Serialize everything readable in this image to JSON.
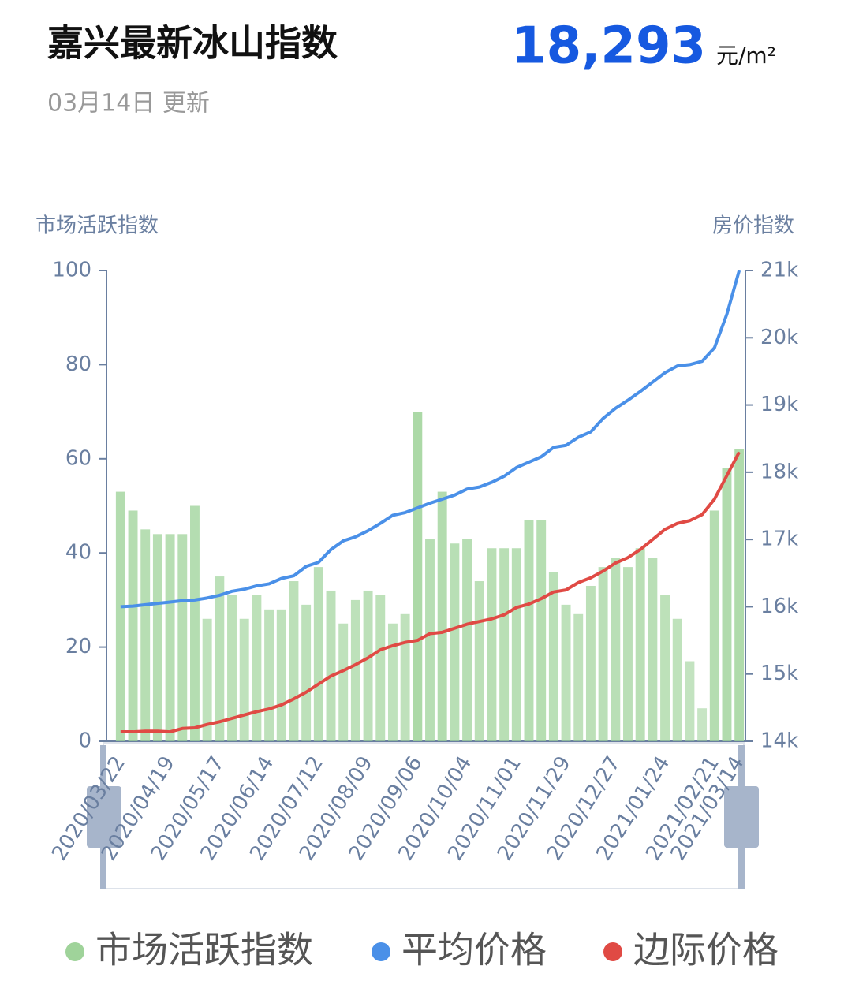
{
  "header": {
    "title": "嘉兴最新冰山指数",
    "price": "18,293",
    "unit": "元/m²",
    "updated": "03月14日  更新"
  },
  "chart_data": {
    "type": "bar",
    "y_axis_title": "市场活跃指数",
    "y2_axis_title": "房价指数",
    "categories": [
      "2020/03/22",
      null,
      null,
      null,
      "2020/04/19",
      null,
      null,
      null,
      "2020/05/17",
      null,
      null,
      null,
      "2020/06/14",
      null,
      null,
      null,
      "2020/07/12",
      null,
      null,
      null,
      "2020/08/09",
      null,
      null,
      null,
      "2020/09/06",
      null,
      null,
      null,
      "2020/10/04",
      null,
      null,
      null,
      "2020/11/01",
      null,
      null,
      null,
      "2020/11/29",
      null,
      null,
      null,
      "2020/12/27",
      null,
      null,
      null,
      "2021/01/24",
      null,
      null,
      null,
      "2021/02/21",
      null,
      "2021/03/14"
    ],
    "series": [
      {
        "name": "市场活跃指数",
        "type": "bar",
        "axis": "y",
        "color": "#9fd39a",
        "values": [
          53,
          49,
          45,
          44,
          44,
          44,
          50,
          26,
          35,
          31,
          26,
          31,
          28,
          28,
          34,
          29,
          37,
          32,
          25,
          30,
          32,
          31,
          25,
          27,
          70,
          43,
          53,
          42,
          43,
          34,
          41,
          41,
          41,
          47,
          47,
          36,
          29,
          27,
          33,
          37,
          39,
          37,
          41,
          39,
          31,
          26,
          17,
          7,
          49,
          58,
          62
        ]
      },
      {
        "name": "平均价格",
        "type": "line",
        "axis": "y2",
        "color": "#4a90e8",
        "values": [
          16000,
          16010,
          16030,
          16050,
          16070,
          16090,
          16100,
          16130,
          16170,
          16230,
          16260,
          16310,
          16340,
          16420,
          16460,
          16600,
          16660,
          16850,
          16980,
          17040,
          17130,
          17240,
          17360,
          17400,
          17470,
          17540,
          17600,
          17660,
          17750,
          17780,
          17850,
          17940,
          18070,
          18150,
          18230,
          18370,
          18400,
          18520,
          18600,
          18800,
          18950,
          19070,
          19200,
          19340,
          19480,
          19580,
          19600,
          19650,
          19850,
          20350,
          21000
        ]
      },
      {
        "name": "边际价格",
        "type": "line",
        "axis": "y2",
        "color": "#e04a44",
        "values": [
          14140,
          14140,
          14150,
          14150,
          14140,
          14190,
          14200,
          14250,
          14290,
          14340,
          14390,
          14440,
          14480,
          14540,
          14630,
          14730,
          14850,
          14970,
          15050,
          15140,
          15240,
          15360,
          15420,
          15470,
          15500,
          15600,
          15620,
          15680,
          15740,
          15780,
          15820,
          15880,
          15990,
          16040,
          16120,
          16220,
          16250,
          16360,
          16430,
          16530,
          16650,
          16730,
          16850,
          17000,
          17150,
          17240,
          17280,
          17370,
          17600,
          17950,
          18300
        ]
      }
    ],
    "ylim": [
      0,
      100
    ],
    "yticks": [
      0,
      20,
      40,
      60,
      80,
      100
    ],
    "y2lim": [
      14000,
      21000
    ],
    "y2ticks": [
      {
        "value": 14000,
        "label": "14k"
      },
      {
        "value": 15000,
        "label": "15k"
      },
      {
        "value": 16000,
        "label": "16k"
      },
      {
        "value": 17000,
        "label": "17k"
      },
      {
        "value": 18000,
        "label": "18k"
      },
      {
        "value": 19000,
        "label": "19k"
      },
      {
        "value": 20000,
        "label": "20k"
      },
      {
        "value": 21000,
        "label": "21k"
      }
    ]
  }
}
